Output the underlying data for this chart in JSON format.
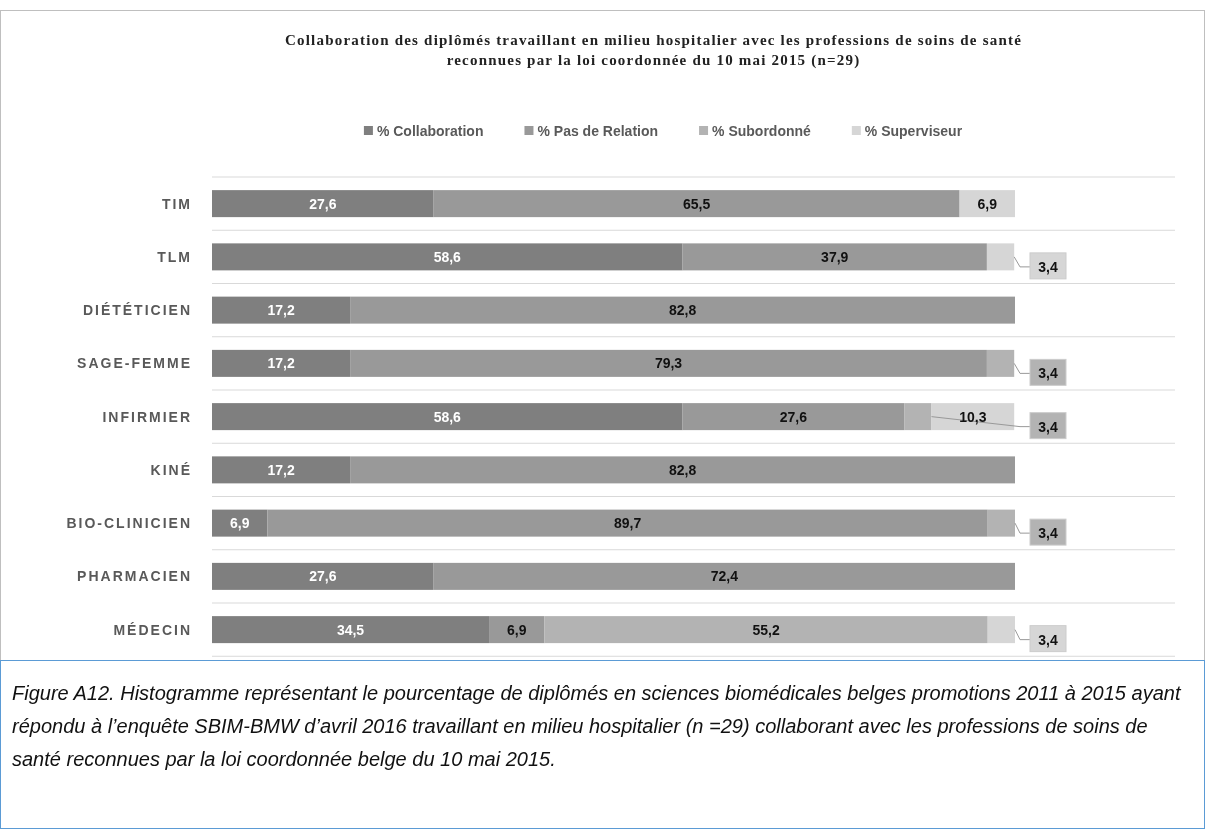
{
  "chart_data": {
    "type": "bar",
    "orientation": "horizontal",
    "stacked": true,
    "title": "Collaboration des diplômés travaillant en milieu hospitalier avec les professions de soins de santé reconnues par la loi coordonnée du 10 mai 2015 (n=29)",
    "categories": [
      "TIM",
      "TLM",
      "DIÉTÉTICIEN",
      "SAGE-FEMME",
      "INFIRMIER",
      "KINÉ",
      "BIO-CLINICIEN",
      "PHARMACIEN",
      "MÉDECIN"
    ],
    "xlim": [
      0,
      100
    ],
    "tick_labels": "y",
    "grid": "y",
    "legend": "top",
    "data_labels": false,
    "series": [
      {
        "name": "% Collaboration",
        "color": "#7f7f7f",
        "values": [
          27.6,
          58.6,
          17.2,
          17.2,
          58.6,
          17.2,
          6.9,
          27.6,
          34.5
        ],
        "value_labels": [
          "27,6",
          "58,6",
          "17,2",
          "17,2",
          "58,6",
          "17,2",
          "6,9",
          "27,6",
          "34,5"
        ]
      },
      {
        "name": "% Pas de Relation",
        "color": "#999999",
        "values": [
          65.5,
          37.9,
          82.8,
          79.3,
          27.6,
          82.8,
          89.7,
          72.4,
          6.9
        ],
        "value_labels": [
          "65,5",
          "37,9",
          "82,8",
          "79,3",
          "27,6",
          "82,8",
          "89,7",
          "72,4",
          "6,9"
        ]
      },
      {
        "name": "% Subordonné",
        "color": "#b3b3b3",
        "values": [
          null,
          null,
          null,
          3.4,
          3.4,
          null,
          3.4,
          null,
          55.2
        ],
        "value_labels": [
          null,
          null,
          null,
          "3,4",
          "3,4",
          null,
          "3,4",
          null,
          "55,2"
        ]
      },
      {
        "name": "% Superviseur",
        "color": "#d6d6d6",
        "values": [
          6.9,
          3.4,
          null,
          null,
          10.3,
          null,
          null,
          null,
          3.4
        ],
        "value_labels": [
          "6,9",
          "3,4",
          null,
          null,
          "10,3",
          null,
          null,
          null,
          "3,4"
        ]
      }
    ],
    "annotations": [
      "Figure A12. Histogramme représentant le pourcentage de diplômés en sciences biomédicales belges promotions 2011 à 2015 ayant répondu à l’enquête SBIM-BMW d’avril 2016 travaillant en milieu hospitalier (n =29) collaborant avec les professions de soins de santé reconnues par la loi coordonnée belge du 10 mai 2015."
    ]
  }
}
